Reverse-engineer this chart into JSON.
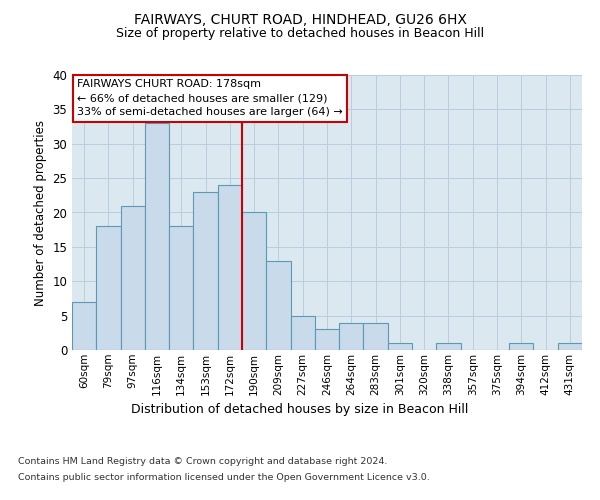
{
  "title": "FAIRWAYS, CHURT ROAD, HINDHEAD, GU26 6HX",
  "subtitle": "Size of property relative to detached houses in Beacon Hill",
  "xlabel": "Distribution of detached houses by size in Beacon Hill",
  "ylabel": "Number of detached properties",
  "categories": [
    "60sqm",
    "79sqm",
    "97sqm",
    "116sqm",
    "134sqm",
    "153sqm",
    "172sqm",
    "190sqm",
    "209sqm",
    "227sqm",
    "246sqm",
    "264sqm",
    "283sqm",
    "301sqm",
    "320sqm",
    "338sqm",
    "357sqm",
    "375sqm",
    "394sqm",
    "412sqm",
    "431sqm"
  ],
  "values": [
    7,
    18,
    21,
    33,
    18,
    23,
    24,
    20,
    13,
    5,
    3,
    4,
    4,
    1,
    0,
    1,
    0,
    0,
    1,
    0,
    1
  ],
  "bar_color": "#c9daea",
  "bar_edge_color": "#5a9ab5",
  "bar_width": 1.0,
  "grid_color": "#b8cfe0",
  "bg_color": "#dce8f0",
  "vline_x": 6.5,
  "vline_color": "#cc0000",
  "annotation_text": "FAIRWAYS CHURT ROAD: 178sqm\n← 66% of detached houses are smaller (129)\n33% of semi-detached houses are larger (64) →",
  "annotation_box_color": "#ffffff",
  "annotation_border_color": "#cc0000",
  "ylim": [
    0,
    40
  ],
  "yticks": [
    0,
    5,
    10,
    15,
    20,
    25,
    30,
    35,
    40
  ],
  "footer_line1": "Contains HM Land Registry data © Crown copyright and database right 2024.",
  "footer_line2": "Contains public sector information licensed under the Open Government Licence v3.0."
}
